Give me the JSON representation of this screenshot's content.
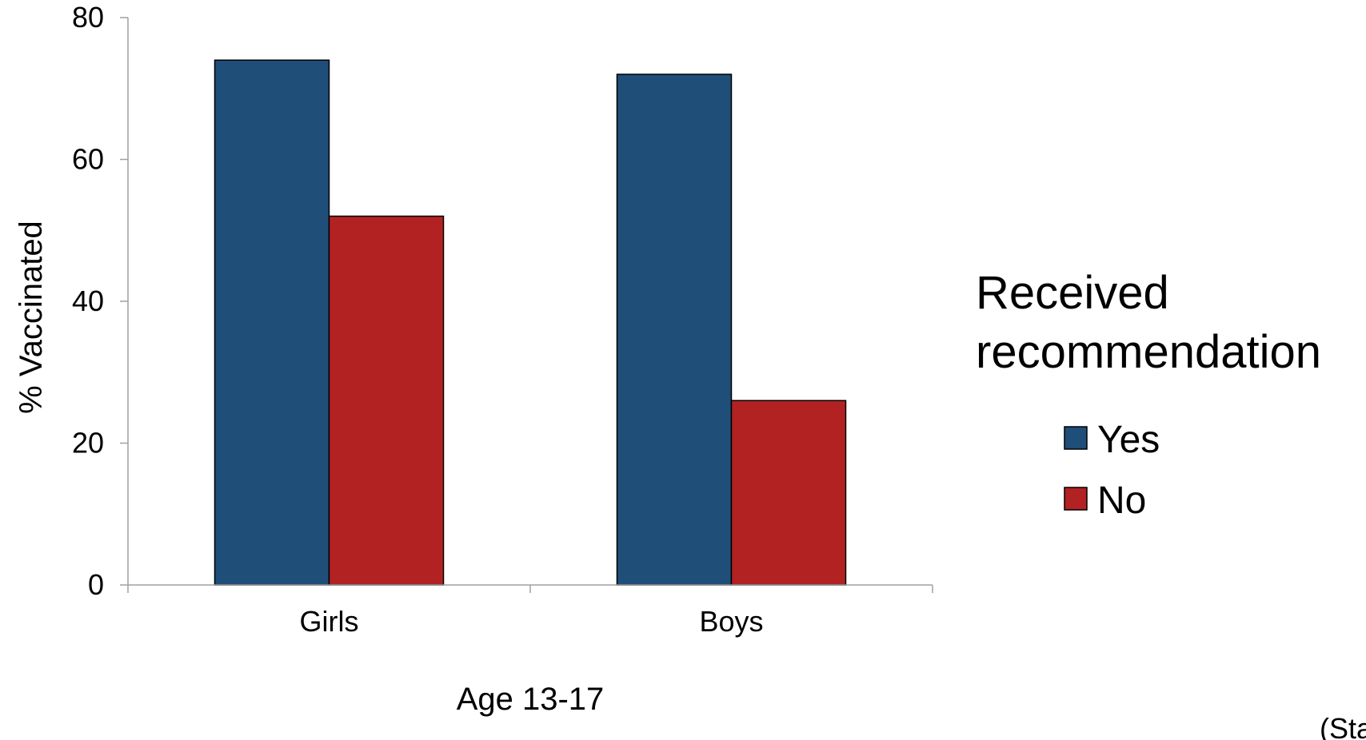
{
  "chart_data": {
    "type": "bar",
    "categories": [
      "Girls",
      "Boys"
    ],
    "series": [
      {
        "name": "Yes",
        "values": [
          74,
          72
        ],
        "color": "#1f4e79"
      },
      {
        "name": "No",
        "values": [
          52,
          26
        ],
        "color": "#b22222"
      }
    ],
    "xlabel": "Age 13-17",
    "ylabel": "% Vaccinated",
    "ylim": [
      0,
      80
    ],
    "yticks": [
      0,
      20,
      40,
      60,
      80
    ],
    "legend": {
      "title_lines": [
        "Received",
        "recommendation"
      ],
      "placement": "right"
    },
    "grid": false
  },
  "source_note": "(Sta"
}
